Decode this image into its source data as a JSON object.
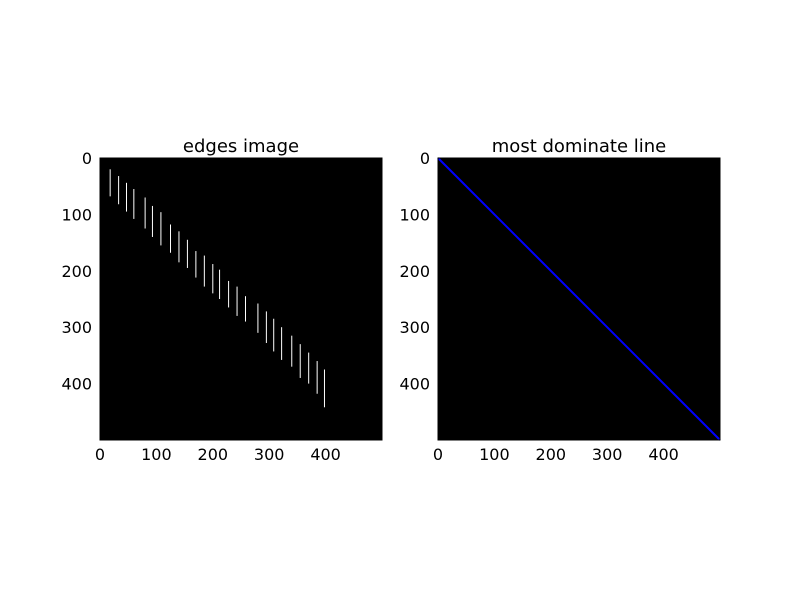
{
  "colors": {
    "background": "#ffffff",
    "plot_area": "#000000",
    "edge_marks": "#ffffff",
    "line": "#0000ff"
  },
  "chart_data": [
    {
      "type": "heatmap",
      "title": "edges image",
      "xlabel": "",
      "ylabel": "",
      "xlim": [
        0,
        500
      ],
      "ylim": [
        500,
        0
      ],
      "y_axis_inverted": true,
      "grid": false,
      "legend": "none",
      "xticks": [
        0,
        100,
        200,
        300,
        400
      ],
      "yticks": [
        0,
        100,
        200,
        300,
        400
      ],
      "edge_segments": [
        {
          "x": 18,
          "y0": 20,
          "y1": 68
        },
        {
          "x": 33,
          "y0": 32,
          "y1": 82
        },
        {
          "x": 47,
          "y0": 44,
          "y1": 95
        },
        {
          "x": 60,
          "y0": 55,
          "y1": 108
        },
        {
          "x": 80,
          "y0": 70,
          "y1": 125
        },
        {
          "x": 93,
          "y0": 85,
          "y1": 140
        },
        {
          "x": 108,
          "y0": 96,
          "y1": 155
        },
        {
          "x": 125,
          "y0": 118,
          "y1": 168
        },
        {
          "x": 140,
          "y0": 130,
          "y1": 185
        },
        {
          "x": 155,
          "y0": 145,
          "y1": 195
        },
        {
          "x": 170,
          "y0": 165,
          "y1": 212
        },
        {
          "x": 185,
          "y0": 173,
          "y1": 228
        },
        {
          "x": 200,
          "y0": 188,
          "y1": 240
        },
        {
          "x": 212,
          "y0": 198,
          "y1": 250
        },
        {
          "x": 228,
          "y0": 218,
          "y1": 265
        },
        {
          "x": 243,
          "y0": 228,
          "y1": 280
        },
        {
          "x": 258,
          "y0": 245,
          "y1": 290
        },
        {
          "x": 280,
          "y0": 258,
          "y1": 310
        },
        {
          "x": 295,
          "y0": 272,
          "y1": 328
        },
        {
          "x": 308,
          "y0": 285,
          "y1": 343
        },
        {
          "x": 322,
          "y0": 300,
          "y1": 358
        },
        {
          "x": 340,
          "y0": 315,
          "y1": 370
        },
        {
          "x": 355,
          "y0": 330,
          "y1": 390
        },
        {
          "x": 370,
          "y0": 345,
          "y1": 400
        },
        {
          "x": 385,
          "y0": 360,
          "y1": 418
        },
        {
          "x": 398,
          "y0": 375,
          "y1": 442
        }
      ]
    },
    {
      "type": "line",
      "title": "most dominate line",
      "xlabel": "",
      "ylabel": "",
      "xlim": [
        0,
        500
      ],
      "ylim": [
        500,
        0
      ],
      "y_axis_inverted": true,
      "grid": false,
      "legend": "none",
      "xticks": [
        0,
        100,
        200,
        300,
        400
      ],
      "yticks": [
        0,
        100,
        200,
        300,
        400
      ],
      "series": [
        {
          "x": [
            0,
            500
          ],
          "y": [
            0,
            500
          ]
        }
      ]
    }
  ]
}
